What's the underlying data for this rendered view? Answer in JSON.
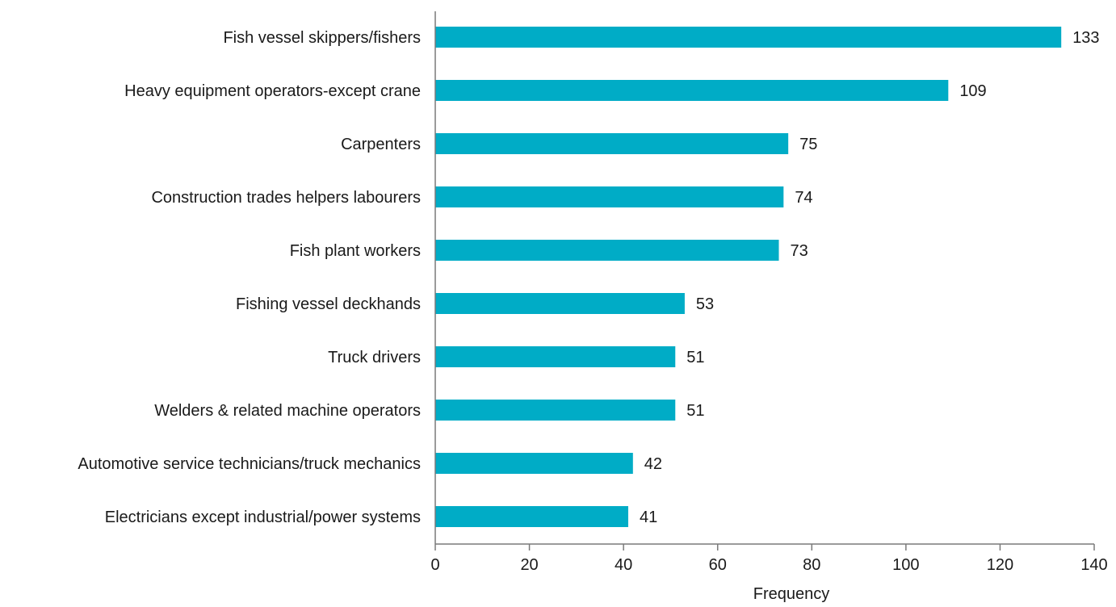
{
  "chart_data": {
    "type": "bar",
    "orientation": "horizontal",
    "categories": [
      "Fish vessel skippers/fishers",
      "Heavy equipment operators-except crane",
      "Carpenters",
      "Construction trades helpers labourers",
      "Fish plant workers",
      "Fishing vessel deckhands",
      "Truck drivers",
      "Welders & related machine operators",
      "Automotive service technicians/truck mechanics",
      "Electricians except industrial/power systems"
    ],
    "values": [
      133,
      109,
      75,
      74,
      73,
      53,
      51,
      51,
      42,
      41
    ],
    "xlabel": "Frequency",
    "ylabel": "",
    "title": "",
    "xlim": [
      0,
      140
    ],
    "xticks": [
      0,
      20,
      40,
      60,
      80,
      100,
      120,
      140
    ],
    "grid": false,
    "legend": "none",
    "bar_color": "#00acc6",
    "axis_color": "#7a7a7a"
  }
}
